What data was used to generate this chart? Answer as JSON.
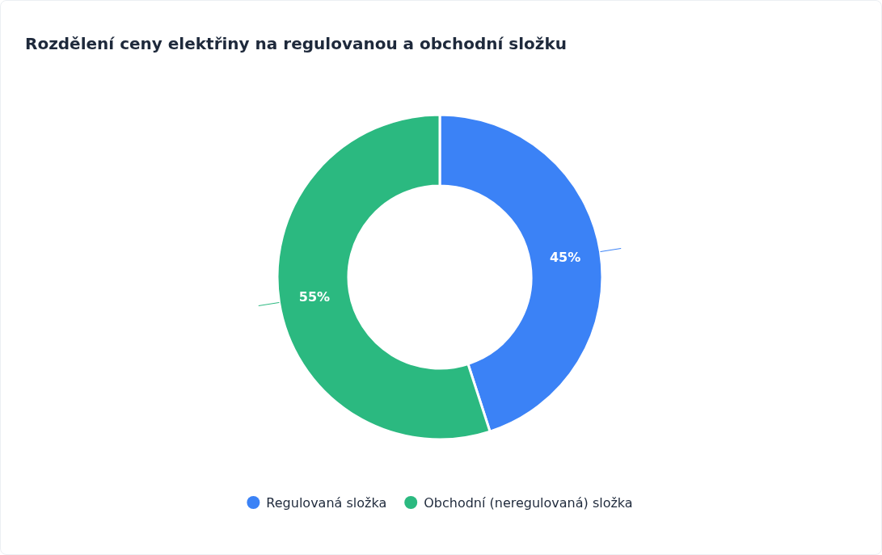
{
  "chart_data": {
    "type": "donut",
    "title": "Rozdělení ceny elektřiny na regulovanou a obchodní složku",
    "categories": [
      "Regulovaná složka",
      "Obchodní (neregulovaná) složka"
    ],
    "values": [
      45,
      55
    ],
    "colors": [
      "#3b82f6",
      "#2bb980"
    ],
    "value_labels": [
      "45%",
      "55%"
    ],
    "legend": "bottom"
  }
}
